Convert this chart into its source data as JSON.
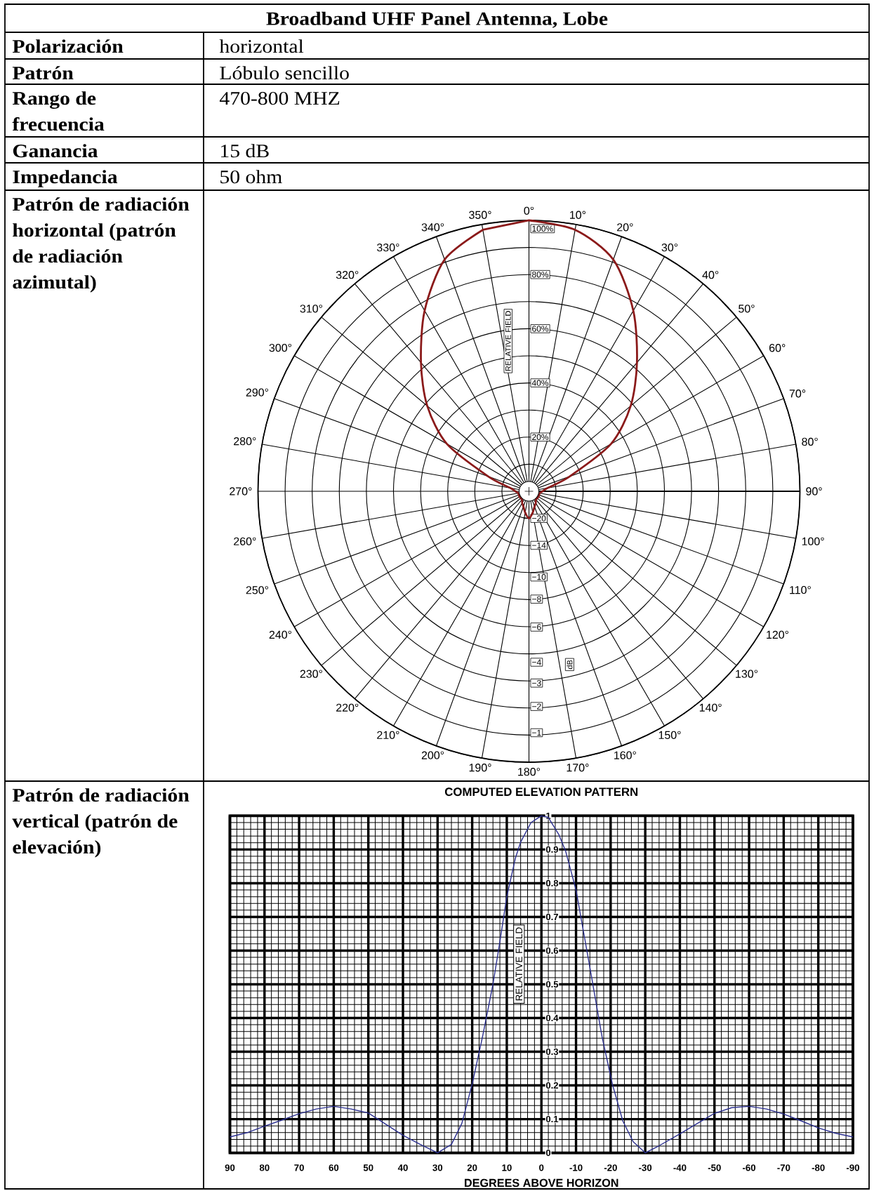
{
  "chart_data": [
    {
      "type": "other",
      "title": "Broadband UHF Panel Antenna, Lobe",
      "annotations": [
        "Polarización",
        "horizontal",
        "Patrón",
        "Lóbulo sencillo",
        "Rango de frecuencia",
        "470-800 MHZ",
        "Ganancia",
        "15 dB",
        "Impedancia",
        "50 ohm"
      ]
    },
    {
      "type": "radar",
      "annotations": [
        "Patrón de radiación horizontal (patrón de radiación azimutal)",
        "−20",
        "−14",
        "−10",
        "−8",
        "−6",
        "−4",
        "−3",
        "−2",
        "−1"
      ],
      "categories": [
        "0°",
        "10°",
        "20°",
        "30°",
        "40°",
        "50°",
        "60°",
        "70°",
        "80°",
        "90°",
        "100°",
        "110°",
        "120°",
        "130°",
        "140°",
        "150°",
        "160°",
        "170°",
        "180°",
        "190°",
        "200°",
        "210°",
        "220°",
        "230°",
        "240°",
        "250°",
        "260°",
        "270°",
        "280°",
        "290°",
        "300°",
        "310°",
        "320°",
        "330°",
        "340°",
        "350°"
      ],
      "series": [
        {
          "color": "#8b1a1a",
          "values": [
            100,
            98,
            91,
            77,
            62,
            49,
            35,
            16,
            7,
            5,
            4,
            4,
            4,
            4,
            4,
            5,
            6,
            8,
            10,
            8,
            6,
            5,
            4,
            4,
            4,
            4,
            4,
            5,
            7,
            16,
            35,
            49,
            62,
            77,
            91,
            98
          ]
        }
      ],
      "ylim": [
        0,
        100
      ],
      "yticks": [
        {
          "value": 20,
          "label": "20%"
        },
        {
          "value": 40,
          "label": "40%"
        },
        {
          "value": 60,
          "label": "60%"
        },
        {
          "value": 80,
          "label": "80%"
        },
        {
          "value": 100,
          "label": "100%"
        }
      ],
      "ylabel": "RELATIVE FIELD",
      "y2label": "dB",
      "grid": true
    },
    {
      "type": "line",
      "title": "COMPUTED ELEVATION PATTERN",
      "annotations": [
        "Patrón de radiación vertical (patrón de elevación)"
      ],
      "x": [
        90,
        85,
        80,
        75,
        70,
        65,
        60,
        55,
        50,
        45,
        40,
        35,
        30,
        26,
        23,
        20,
        17,
        14,
        12,
        10,
        7.5,
        6,
        3,
        0,
        -2,
        -5,
        -7,
        -10,
        -14,
        -17.5,
        -20.5,
        -23.5,
        -26.5,
        -30,
        -34,
        -40,
        -45,
        -50,
        -55,
        -60,
        -65,
        -70,
        -75,
        -80,
        -85,
        -90
      ],
      "values": [
        0.047,
        0.06,
        0.079,
        0.097,
        0.116,
        0.13,
        0.138,
        0.13,
        0.118,
        0.085,
        0.052,
        0.025,
        0,
        0.025,
        0.087,
        0.204,
        0.345,
        0.5,
        0.626,
        0.76,
        0.875,
        0.922,
        0.98,
        1,
        0.995,
        0.945,
        0.895,
        0.78,
        0.55,
        0.345,
        0.204,
        0.095,
        0.033,
        0,
        0.021,
        0.056,
        0.087,
        0.117,
        0.134,
        0.138,
        0.13,
        0.115,
        0.095,
        0.074,
        0.058,
        0.047
      ],
      "color": "#2b2f8f",
      "xlim": [
        90,
        -90
      ],
      "xticks": [
        90,
        80,
        70,
        60,
        50,
        40,
        30,
        20,
        10,
        0,
        -10,
        -20,
        -30,
        -40,
        -50,
        -60,
        -70,
        -80,
        -90
      ],
      "ylim": [
        0,
        1
      ],
      "yticks": [
        0,
        0.1,
        0.2,
        0.3,
        0.4,
        0.5,
        0.6,
        0.7,
        0.8,
        0.9,
        1
      ],
      "xlabel": "DEGREES ABOVE HORIZON",
      "ylabel": "RELATIVE FIELD",
      "grid": true
    }
  ]
}
